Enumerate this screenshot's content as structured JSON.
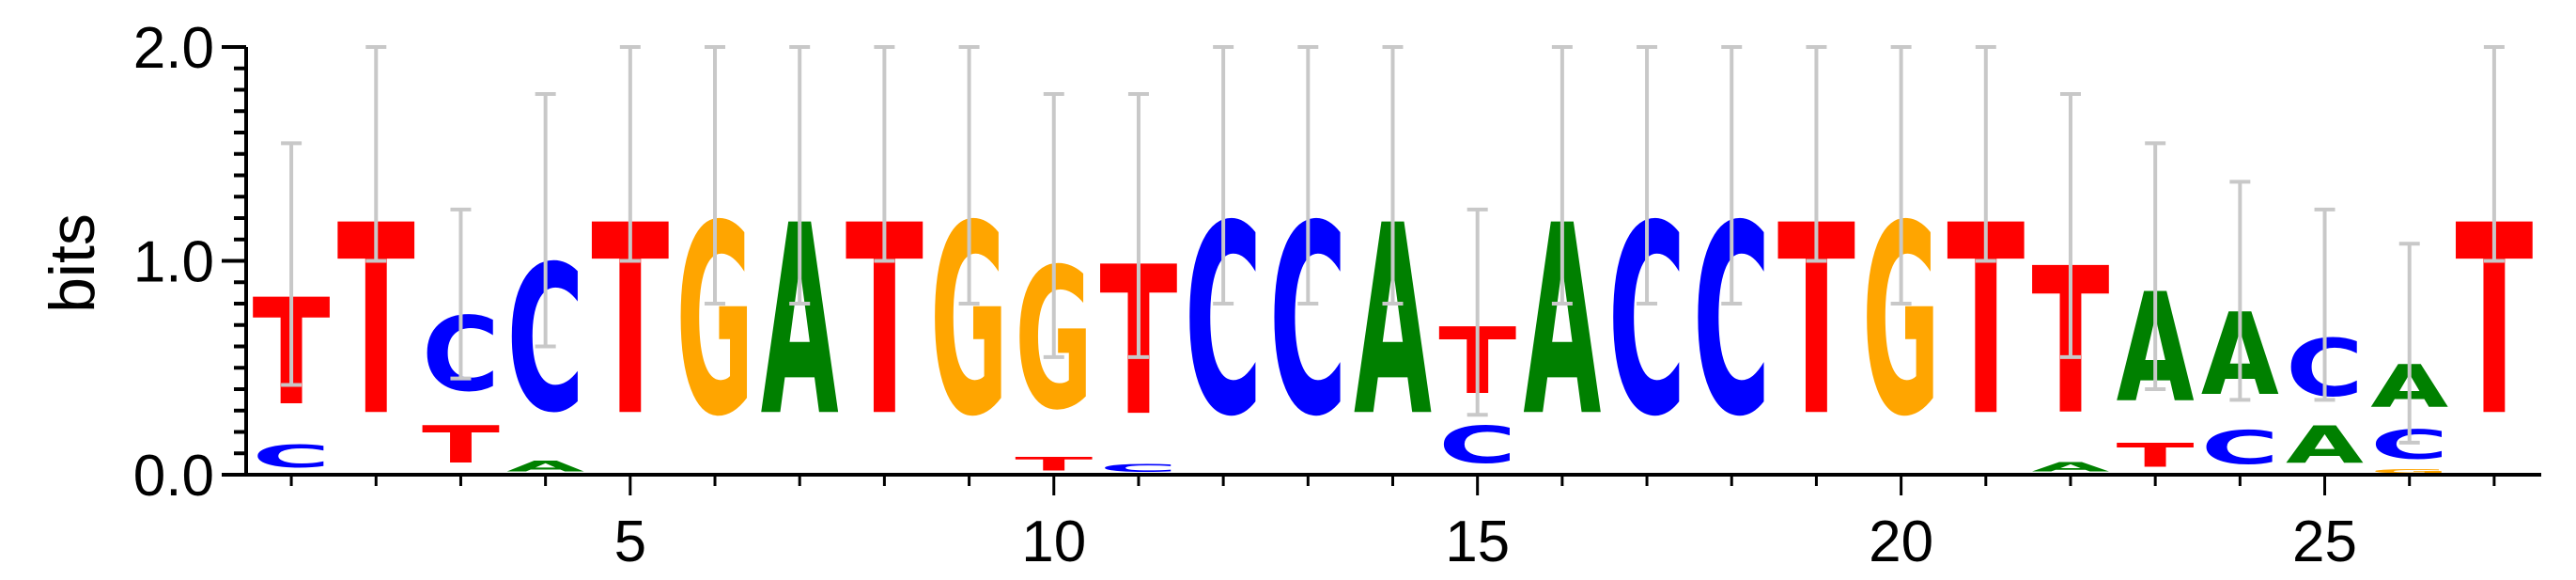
{
  "chart_data": {
    "type": "sequence-logo",
    "ylabel": "bits",
    "ylim": [
      0,
      2
    ],
    "y_ticks": [
      {
        "value": 0,
        "label": "0.0"
      },
      {
        "value": 1,
        "label": "1.0"
      },
      {
        "value": 2,
        "label": "2.0"
      }
    ],
    "x_range": [
      0.5,
      27.5
    ],
    "x_ticks": [
      {
        "value": 5,
        "label": "5"
      },
      {
        "value": 10,
        "label": "10"
      },
      {
        "value": 15,
        "label": "15"
      },
      {
        "value": 20,
        "label": "20"
      },
      {
        "value": 25,
        "label": "25"
      }
    ],
    "colors": {
      "A": "#008000",
      "C": "#0000ff",
      "G": "#ffa500",
      "T": "#ff0000",
      "errorbar": "#c8c8c8"
    },
    "positions": [
      {
        "pos": 1,
        "stack": [
          {
            "base": "C",
            "height": 0.17
          },
          {
            "base": "T",
            "height": 0.8
          }
        ],
        "error": [
          0.42,
          1.55
        ]
      },
      {
        "pos": 2,
        "stack": [
          {
            "base": "T",
            "height": 1.43
          }
        ],
        "error": [
          1.0,
          2.0
        ]
      },
      {
        "pos": 3,
        "stack": [
          {
            "base": "T",
            "height": 0.28
          },
          {
            "base": "C",
            "height": 0.56
          }
        ],
        "error": [
          0.45,
          1.24
        ]
      },
      {
        "pos": 4,
        "stack": [
          {
            "base": "A",
            "height": 0.08
          },
          {
            "base": "C",
            "height": 1.1
          }
        ],
        "error": [
          0.6,
          1.78
        ]
      },
      {
        "pos": 5,
        "stack": [
          {
            "base": "T",
            "height": 1.43
          }
        ],
        "error": [
          1.0,
          2.0
        ]
      },
      {
        "pos": 6,
        "stack": [
          {
            "base": "G",
            "height": 1.43
          }
        ],
        "error": [
          0.8,
          2.0
        ]
      },
      {
        "pos": 7,
        "stack": [
          {
            "base": "A",
            "height": 1.43
          }
        ],
        "error": [
          0.8,
          2.0
        ]
      },
      {
        "pos": 8,
        "stack": [
          {
            "base": "T",
            "height": 1.43
          }
        ],
        "error": [
          1.0,
          2.0
        ]
      },
      {
        "pos": 9,
        "stack": [
          {
            "base": "G",
            "height": 1.43
          }
        ],
        "error": [
          0.8,
          2.0
        ]
      },
      {
        "pos": 10,
        "stack": [
          {
            "base": "T",
            "height": 0.1
          },
          {
            "base": "G",
            "height": 1.06
          }
        ],
        "error": [
          0.55,
          1.78
        ]
      },
      {
        "pos": 11,
        "stack": [
          {
            "base": "C",
            "height": 0.06
          },
          {
            "base": "T",
            "height": 1.12
          }
        ],
        "error": [
          0.55,
          1.78
        ]
      },
      {
        "pos": 12,
        "stack": [
          {
            "base": "C",
            "height": 1.43
          }
        ],
        "error": [
          0.8,
          2.0
        ]
      },
      {
        "pos": 13,
        "stack": [
          {
            "base": "C",
            "height": 1.43
          }
        ],
        "error": [
          0.8,
          2.0
        ]
      },
      {
        "pos": 14,
        "stack": [
          {
            "base": "A",
            "height": 1.43
          }
        ],
        "error": [
          0.8,
          2.0
        ]
      },
      {
        "pos": 15,
        "stack": [
          {
            "base": "C",
            "height": 0.28
          },
          {
            "base": "T",
            "height": 0.5
          }
        ],
        "error": [
          0.28,
          1.24
        ]
      },
      {
        "pos": 16,
        "stack": [
          {
            "base": "A",
            "height": 1.43
          }
        ],
        "error": [
          0.8,
          2.0
        ]
      },
      {
        "pos": 17,
        "stack": [
          {
            "base": "C",
            "height": 1.43
          }
        ],
        "error": [
          0.8,
          2.0
        ]
      },
      {
        "pos": 18,
        "stack": [
          {
            "base": "C",
            "height": 1.43
          }
        ],
        "error": [
          0.8,
          2.0
        ]
      },
      {
        "pos": 19,
        "stack": [
          {
            "base": "T",
            "height": 1.43
          }
        ],
        "error": [
          1.0,
          2.0
        ]
      },
      {
        "pos": 20,
        "stack": [
          {
            "base": "G",
            "height": 1.43
          }
        ],
        "error": [
          0.8,
          2.0
        ]
      },
      {
        "pos": 21,
        "stack": [
          {
            "base": "T",
            "height": 1.43
          }
        ],
        "error": [
          1.0,
          2.0
        ]
      },
      {
        "pos": 22,
        "stack": [
          {
            "base": "A",
            "height": 0.07
          },
          {
            "base": "T",
            "height": 1.1
          }
        ],
        "error": [
          0.55,
          1.78
        ]
      },
      {
        "pos": 23,
        "stack": [
          {
            "base": "T",
            "height": 0.18
          },
          {
            "base": "A",
            "height": 0.82
          }
        ],
        "error": [
          0.4,
          1.55
        ]
      },
      {
        "pos": 24,
        "stack": [
          {
            "base": "C",
            "height": 0.25
          },
          {
            "base": "A",
            "height": 0.62
          }
        ],
        "error": [
          0.35,
          1.37
        ]
      },
      {
        "pos": 25,
        "stack": [
          {
            "base": "A",
            "height": 0.28
          },
          {
            "base": "C",
            "height": 0.43
          }
        ],
        "error": [
          0.35,
          1.24
        ]
      },
      {
        "pos": 26,
        "stack": [
          {
            "base": "G",
            "height": 0.03
          },
          {
            "base": "C",
            "height": 0.22
          },
          {
            "base": "A",
            "height": 0.32
          }
        ],
        "error": [
          0.15,
          1.08
        ]
      },
      {
        "pos": 27,
        "stack": [
          {
            "base": "T",
            "height": 1.43
          }
        ],
        "error": [
          1.0,
          2.0
        ]
      }
    ]
  }
}
